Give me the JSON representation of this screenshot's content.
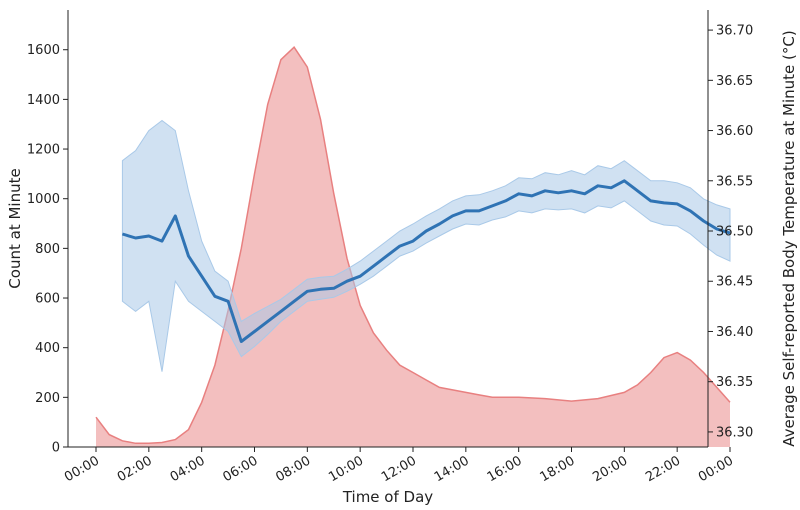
{
  "chart_data": {
    "type": "area",
    "title": "",
    "xlabel": "Time of Day",
    "ylabel": "Count at Minute",
    "y2label": "Average Self-reported Body Temperature at Minute (°C)",
    "xlim": [
      0,
      24
    ],
    "ylim": [
      0,
      1760
    ],
    "y2lim": [
      36.285,
      36.72
    ],
    "x_ticks": [
      0,
      2,
      4,
      6,
      8,
      10,
      12,
      14,
      16,
      18,
      20,
      22,
      24
    ],
    "x_tick_labels": [
      "00:00",
      "02:00",
      "04:00",
      "06:00",
      "08:00",
      "10:00",
      "12:00",
      "14:00",
      "16:00",
      "18:00",
      "20:00",
      "22:00",
      "00:00"
    ],
    "y_ticks": [
      0,
      200,
      400,
      600,
      800,
      1000,
      1200,
      1400,
      1600
    ],
    "y_tick_labels": [
      "0",
      "200",
      "400",
      "600",
      "800",
      "1000",
      "1200",
      "1400",
      "1600"
    ],
    "y2_ticks": [
      36.3,
      36.35,
      36.4,
      36.45,
      36.5,
      36.55,
      36.6,
      36.65,
      36.7
    ],
    "y2_tick_labels": [
      "36.30",
      "36.35",
      "36.40",
      "36.45",
      "36.50",
      "36.55",
      "36.60",
      "36.65",
      "36.70"
    ],
    "grid": false,
    "legend": "none",
    "series": [
      {
        "axis": "left",
        "kind": "area",
        "color": "#e88080",
        "x": [
          0,
          0.5,
          1,
          1.5,
          2,
          2.5,
          3,
          3.5,
          4,
          4.5,
          5,
          5.5,
          6,
          6.5,
          7,
          7.5,
          8,
          8.5,
          9,
          9.5,
          10,
          10.5,
          11,
          11.5,
          12,
          12.5,
          13,
          13.5,
          14,
          14.5,
          15,
          16,
          17,
          18,
          19,
          20,
          20.5,
          21,
          21.5,
          22,
          22.5,
          23,
          23.5,
          24
        ],
        "y": [
          120,
          50,
          25,
          15,
          15,
          18,
          30,
          70,
          180,
          330,
          550,
          800,
          1100,
          1380,
          1560,
          1610,
          1530,
          1320,
          1020,
          760,
          570,
          460,
          390,
          330,
          300,
          270,
          240,
          230,
          220,
          210,
          200,
          200,
          195,
          185,
          195,
          220,
          250,
          300,
          360,
          380,
          350,
          300,
          240,
          180
        ]
      },
      {
        "axis": "right",
        "kind": "line",
        "color": "#2f73b4",
        "band_color": "#a9c9e8",
        "x": [
          1,
          1.5,
          2,
          2.5,
          3,
          3.5,
          4,
          4.5,
          5,
          5.5,
          6,
          6.5,
          7,
          7.5,
          8,
          8.5,
          9,
          9.5,
          10,
          10.5,
          11,
          11.5,
          12,
          12.5,
          13,
          13.5,
          14,
          14.5,
          15,
          15.5,
          16,
          16.5,
          17,
          17.5,
          18,
          18.5,
          19,
          19.5,
          20,
          20.5,
          21,
          21.5,
          22,
          22.5,
          23,
          23.5,
          24
        ],
        "y": [
          36.497,
          36.493,
          36.495,
          36.49,
          36.515,
          36.475,
          36.455,
          36.435,
          36.43,
          36.39,
          36.4,
          36.41,
          36.42,
          36.43,
          36.44,
          36.442,
          36.443,
          36.45,
          36.455,
          36.465,
          36.475,
          36.485,
          36.49,
          36.5,
          36.507,
          36.515,
          36.52,
          36.52,
          36.525,
          36.53,
          36.537,
          36.535,
          36.54,
          36.538,
          36.54,
          36.537,
          36.545,
          36.543,
          36.55,
          36.54,
          36.53,
          36.528,
          36.527,
          36.52,
          36.51,
          36.502,
          36.498
        ],
        "lower": [
          36.43,
          36.42,
          36.43,
          36.36,
          36.45,
          36.43,
          36.42,
          36.41,
          36.4,
          36.375,
          36.385,
          36.397,
          36.41,
          36.42,
          36.43,
          36.432,
          36.434,
          36.44,
          36.447,
          36.455,
          36.465,
          36.475,
          36.48,
          36.488,
          36.495,
          36.502,
          36.507,
          36.506,
          36.511,
          36.514,
          36.52,
          36.518,
          36.522,
          36.521,
          36.522,
          36.518,
          36.525,
          36.523,
          36.53,
          36.52,
          36.51,
          36.506,
          36.505,
          36.497,
          36.486,
          36.476,
          36.47
        ],
        "upper": [
          36.57,
          36.58,
          36.6,
          36.61,
          36.6,
          36.54,
          36.49,
          36.46,
          36.45,
          36.41,
          36.418,
          36.425,
          36.432,
          36.442,
          36.452,
          36.454,
          36.455,
          36.462,
          36.47,
          36.48,
          36.49,
          36.5,
          36.507,
          36.515,
          36.522,
          36.53,
          36.535,
          36.536,
          36.54,
          36.545,
          36.553,
          36.552,
          36.558,
          36.556,
          36.56,
          36.556,
          36.565,
          36.562,
          36.57,
          36.56,
          36.55,
          36.55,
          36.548,
          36.543,
          36.532,
          36.526,
          36.522
        ]
      }
    ]
  }
}
